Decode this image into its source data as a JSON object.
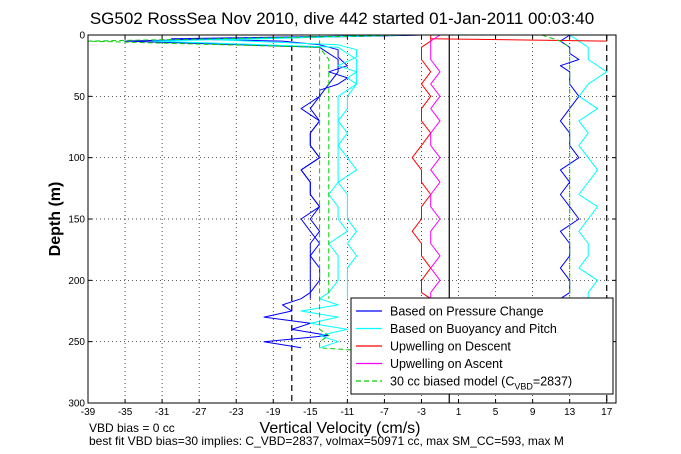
{
  "chart_data": {
    "type": "line",
    "title": "SG502 RossSea Nov 2010, dive 442 started 01-Jan-2011 00:03:40",
    "xlabel": "Vertical Velocity (cm/s)",
    "ylabel": "Depth (m)",
    "xlim": [
      -39,
      18
    ],
    "ylim": [
      0,
      300
    ],
    "y_reversed": true,
    "grid": true,
    "xticks": [
      "-39",
      "-35",
      "-31",
      "-27",
      "-23",
      "-19",
      "-15",
      "-11",
      "-7",
      "-3",
      "1",
      "5",
      "9",
      "13",
      "17"
    ],
    "yticks": [
      "0",
      "50",
      "100",
      "150",
      "200",
      "250",
      "300"
    ],
    "legend": {
      "placement": "bottom-right",
      "entries": [
        {
          "label": "Based on Pressure Change",
          "color": "#0000ff",
          "style": "solid"
        },
        {
          "label": "Based on Buoyancy and Pitch",
          "color": "#00ffff",
          "style": "solid"
        },
        {
          "label": "Upwelling on Descent",
          "color": "#ff0000",
          "style": "solid"
        },
        {
          "label": "Upwelling on Ascent",
          "color": "#ff00ff",
          "style": "solid"
        },
        {
          "label_prefix": "30 cc biased model (C",
          "label_sub": "VBD",
          "label_suffix": "=2837)",
          "color": "#00cc00",
          "style": "dashed"
        }
      ]
    },
    "reference_lines": [
      {
        "x": -17,
        "style": "dashed",
        "color": "#000000"
      },
      {
        "x": 0,
        "style": "solid",
        "color": "#000000"
      },
      {
        "x": 17,
        "style": "dashed",
        "color": "#000000"
      }
    ],
    "series": [
      {
        "color": "#0000ff",
        "dive_depth": [
          0,
          3,
          5,
          8,
          12,
          18,
          25,
          30,
          35,
          40,
          45,
          50,
          55,
          60,
          70,
          80,
          90,
          100,
          110,
          120,
          130,
          140,
          150,
          160,
          170,
          180,
          190,
          200,
          210,
          215
        ],
        "dive_velocity": [
          -3,
          -30,
          -18,
          -14,
          -12,
          -12,
          -11,
          -13,
          -11,
          -12,
          -14,
          -14,
          -15,
          -16,
          -14,
          -15,
          -15,
          -14,
          -16,
          -15,
          -15,
          -14,
          -15,
          -14,
          -15,
          -15,
          -14,
          -14,
          -15,
          -15
        ],
        "climb_depth": [
          255,
          250,
          245,
          240,
          235,
          230,
          225,
          220,
          215,
          210,
          200,
          190,
          180,
          170,
          160,
          150,
          140,
          130,
          120,
          110,
          100,
          90,
          80,
          70,
          60,
          50,
          40,
          30,
          20,
          10,
          5,
          0
        ],
        "climb_velocity": [
          -16,
          -20,
          -13,
          -17,
          -15,
          -20,
          -17,
          -18,
          -16,
          -15,
          -15,
          -15,
          -15,
          -14,
          -15,
          -16,
          -14,
          -15,
          -15,
          -16,
          -14,
          -15,
          -15,
          -14,
          -15,
          -14,
          -13,
          -12,
          -12,
          -14,
          -35,
          -3
        ],
        "ascent_depth": [
          0,
          5,
          10,
          15,
          20,
          25,
          30,
          40,
          50,
          60,
          70,
          80,
          90,
          100,
          110,
          120,
          130,
          140,
          150,
          160,
          170,
          180,
          190,
          200,
          210,
          215
        ],
        "ascent_velocity": [
          13,
          12,
          13,
          13,
          14,
          12,
          13,
          13,
          14,
          13,
          12,
          13,
          13,
          14,
          12,
          13,
          12,
          13,
          14,
          12,
          13,
          13,
          12,
          13,
          13,
          12
        ]
      },
      {
        "color": "#00ffff",
        "dive_depth": [
          0,
          4,
          8,
          12,
          18,
          25,
          30,
          35,
          40,
          45,
          50,
          55,
          60,
          70,
          80,
          90,
          100,
          110,
          120,
          130,
          140,
          150,
          160,
          170,
          180,
          190,
          200,
          210,
          215
        ],
        "dive_velocity": [
          -5,
          -25,
          -12,
          -10,
          -10,
          -12,
          -10,
          -11,
          -10,
          -11,
          -12,
          -12,
          -12,
          -12,
          -11,
          -12,
          -11,
          -10,
          -12,
          -11,
          -11,
          -11,
          -10,
          -11,
          -10,
          -11,
          -11,
          -11,
          -11
        ],
        "climb_depth": [
          255,
          250,
          245,
          240,
          235,
          230,
          225,
          220,
          215,
          210,
          200,
          190,
          180,
          170,
          160,
          150,
          140,
          130,
          120,
          110,
          100,
          90,
          80,
          70,
          60,
          50,
          40,
          30,
          20,
          10,
          5,
          0
        ],
        "climb_velocity": [
          -14,
          -12,
          -14,
          -11,
          -15,
          -12,
          -16,
          -12,
          -14,
          -13,
          -12,
          -12,
          -12,
          -13,
          -11,
          -12,
          -12,
          -13,
          -12,
          -12,
          -12,
          -12,
          -12,
          -12,
          -11,
          -11,
          -10,
          -10,
          -10,
          -12,
          -32,
          -5
        ],
        "ascent_depth": [
          0,
          5,
          10,
          20,
          30,
          40,
          50,
          60,
          70,
          80,
          90,
          100,
          110,
          120,
          130,
          140,
          150,
          160,
          170,
          180,
          190,
          200,
          210,
          215
        ],
        "ascent_velocity": [
          13,
          14,
          15,
          15,
          17,
          15,
          14,
          16,
          14,
          15,
          14,
          15,
          16,
          15,
          14,
          16,
          15,
          14,
          15,
          15,
          14,
          16,
          15,
          15
        ]
      },
      {
        "color": "#ff0000",
        "dive_depth": [
          0,
          5,
          10,
          20,
          30,
          40,
          50,
          60,
          70,
          80,
          90,
          100,
          110,
          120,
          130,
          140,
          150,
          160,
          170,
          180,
          190,
          200,
          210,
          215
        ],
        "dive_velocity": [
          -2,
          -2,
          -3,
          -3,
          -2,
          -3,
          -2,
          -3,
          -3,
          -2,
          -3,
          -4,
          -3,
          -3,
          -2,
          -3,
          -3,
          -4,
          -3,
          -3,
          -2,
          -3,
          -3,
          -2
        ],
        "surface_depth": [
          3,
          5
        ],
        "surface_velocity": [
          -2,
          17
        ]
      },
      {
        "color": "#ff00ff",
        "ascent_depth": [
          0,
          5,
          10,
          20,
          30,
          40,
          50,
          60,
          70,
          80,
          90,
          100,
          110,
          120,
          130,
          140,
          150,
          160,
          170,
          180,
          190,
          200,
          210,
          215
        ],
        "ascent_velocity": [
          -1,
          -2,
          -2,
          -2,
          -1,
          -2,
          -1,
          -2,
          -1,
          -2,
          -2,
          -1,
          -2,
          -1,
          -2,
          -2,
          -1,
          -2,
          -2,
          -1,
          -2,
          -1,
          -2,
          -2
        ]
      },
      {
        "color": "#00cc00",
        "style": "dashed",
        "dive_depth": [
          0,
          5,
          10,
          20,
          30,
          40,
          50,
          60,
          70,
          80,
          90,
          100,
          110,
          120,
          130,
          140,
          150,
          160,
          170,
          180,
          190,
          200,
          210,
          215
        ],
        "dive_velocity": [
          -4,
          -39,
          -14,
          -13,
          -13,
          -13,
          -13,
          -13,
          -13,
          -13,
          -13,
          -13,
          -13,
          -13,
          -13,
          -13,
          -13,
          -13,
          -13,
          -13,
          -13,
          -13,
          -13,
          -13
        ],
        "climb_depth": [
          258,
          255,
          250,
          245,
          240,
          235,
          230,
          225,
          220,
          215,
          210,
          200,
          150,
          100,
          50,
          0
        ],
        "climb_velocity": [
          -8,
          -14,
          -14,
          -13,
          -14,
          -14,
          -14,
          -14,
          -14,
          -14,
          -14,
          -14,
          -14,
          -14,
          -14,
          -14
        ],
        "ascent_depth": [
          0,
          5,
          10,
          20,
          50,
          100,
          150,
          200,
          215
        ],
        "ascent_velocity": [
          10,
          12,
          13,
          13,
          13,
          13,
          13,
          13,
          13
        ]
      }
    ]
  },
  "footer": {
    "line1": "VBD bias = 0 cc",
    "line2": "best fit VBD bias=30 implies: C_VBD=2837, volmax=50971 cc, max SM_CC=593, max M"
  }
}
